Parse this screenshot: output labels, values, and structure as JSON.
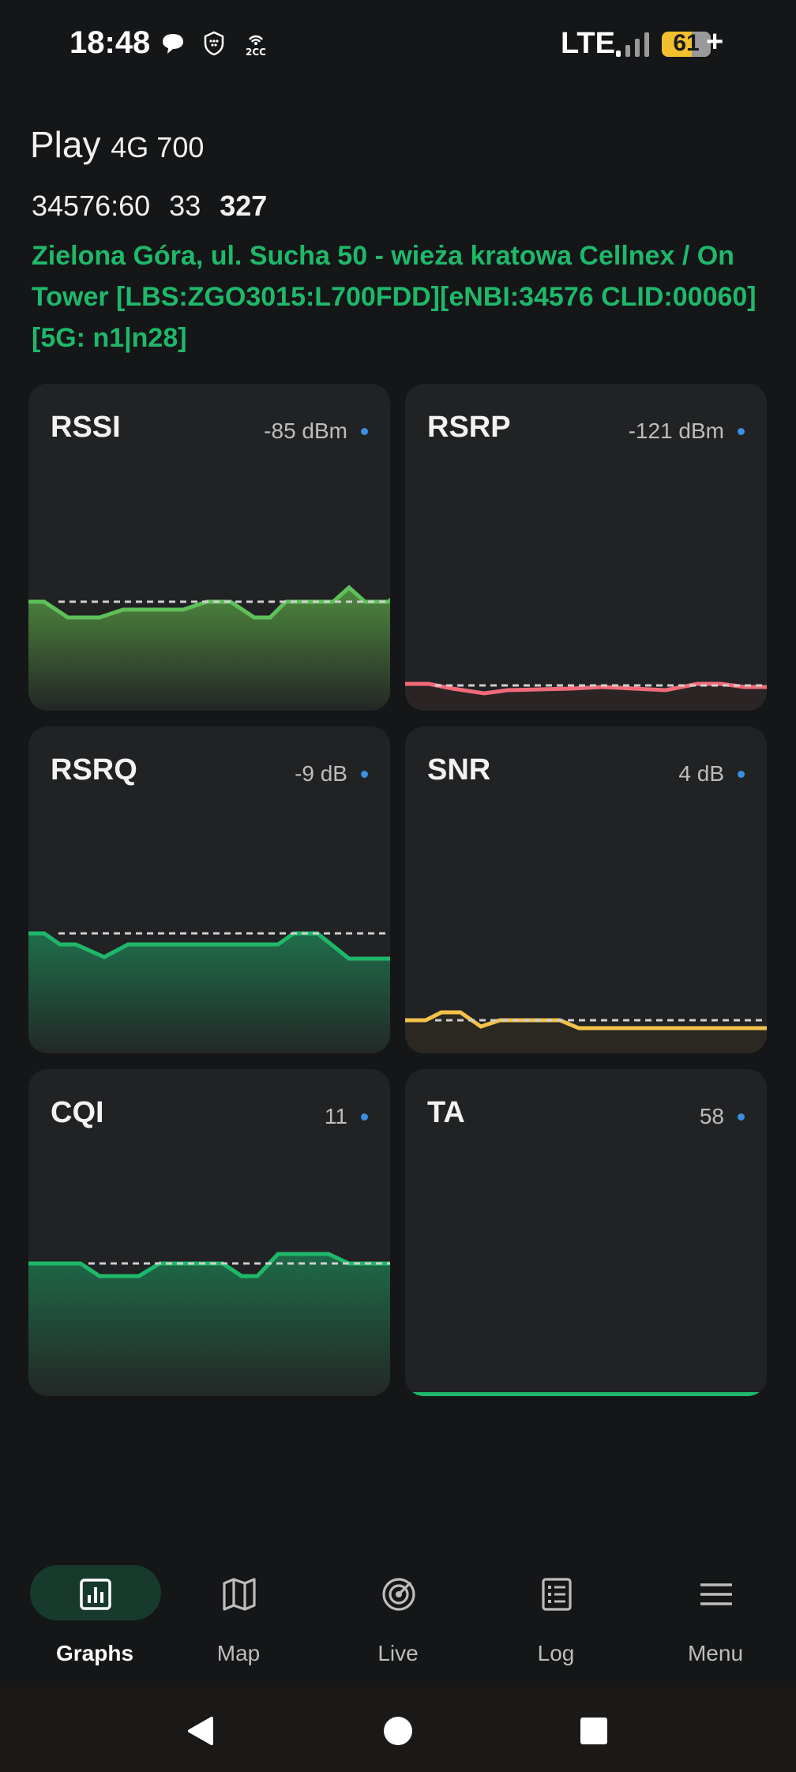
{
  "status_bar": {
    "time": "18:48",
    "network": "LTE",
    "battery": "61",
    "charging": "+",
    "icons": [
      "chat-bubble-icon",
      "shield-icon",
      "nfc-2cc-icon"
    ]
  },
  "header": {
    "operator": "Play",
    "band": "4G 700",
    "cell_id": "34576:60",
    "tac": "33",
    "pci": "327",
    "location": "Zielona Góra, ul. Sucha 50 - wieża kratowa Cellnex / On Tower [LBS:ZGO3015:L700FDD][eNBI:34576 CLID:00060][5G: n1|n28]"
  },
  "cards": {
    "rssi": {
      "title": "RSSI",
      "value": "-85 dBm"
    },
    "rsrp": {
      "title": "RSRP",
      "value": "-121 dBm"
    },
    "rsrq": {
      "title": "RSRQ",
      "value": "-9 dB"
    },
    "snr": {
      "title": "SNR",
      "value": "4 dB"
    },
    "cqi": {
      "title": "CQI",
      "value": "11"
    },
    "ta": {
      "title": "TA",
      "value": "58"
    }
  },
  "nav": {
    "graphs": "Graphs",
    "map": "Map",
    "live": "Live",
    "log": "Log",
    "menu": "Menu",
    "active": "graphs"
  },
  "colors": {
    "accent_green": "#1fb86a",
    "rssi_line": "#5fc05a",
    "rsrp_line": "#f06a78",
    "snr_line": "#f4c24a",
    "dot_blue": "#3b8fe0"
  }
}
